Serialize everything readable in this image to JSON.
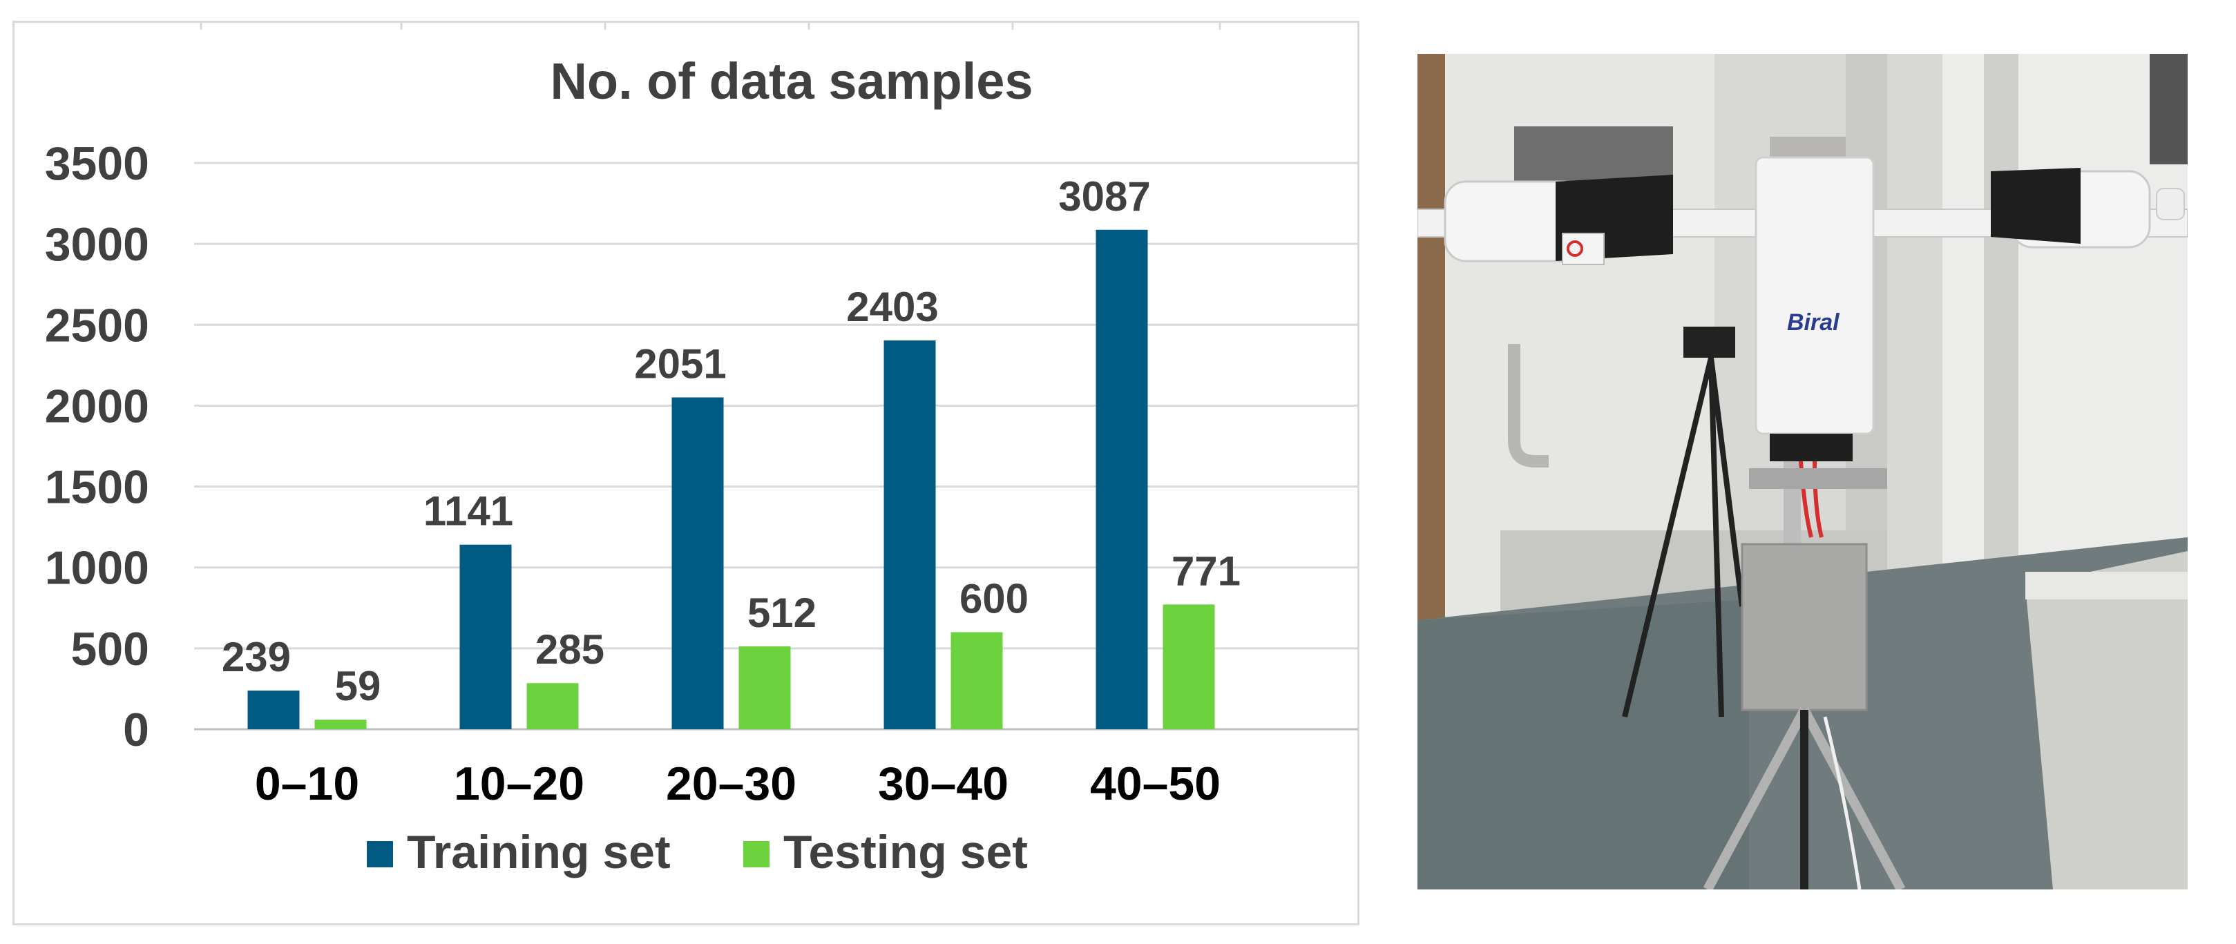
{
  "chart_data": {
    "type": "bar",
    "title": "No. of data samples",
    "xlabel": "",
    "ylabel": "",
    "categories": [
      "0–10",
      "10–20",
      "20–30",
      "30–40",
      "40–50"
    ],
    "series": [
      {
        "name": "Training set",
        "values": [
          239,
          1141,
          2051,
          2403,
          3087
        ],
        "color": "#005A82"
      },
      {
        "name": "Testing set",
        "values": [
          59,
          285,
          512,
          600,
          771
        ],
        "color": "#6CD33F"
      }
    ],
    "ylim": [
      0,
      3500
    ],
    "yticks": [
      0,
      500,
      1000,
      1500,
      2000,
      2500,
      3000,
      3500
    ],
    "grid": true,
    "legend": "bottom",
    "data_labels": true
  },
  "photo": {
    "description_icon": "weather-sensor-photo",
    "brand_text": "Biral",
    "colors": {
      "wall": "#e9e9e7",
      "floor": "#6f7b7c",
      "sensor": "#f4f4f4",
      "housing": "#1e1e1e"
    }
  }
}
